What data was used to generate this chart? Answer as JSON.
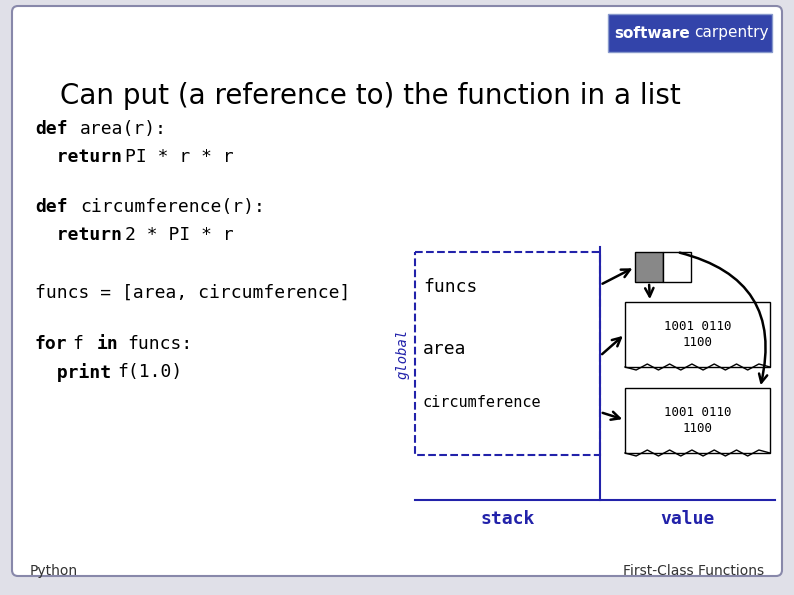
{
  "title": "Can put (a reference to) the function in a list",
  "bg_color": "#e0e0e8",
  "slide_bg": "#ffffff",
  "border_color": "#8888aa",
  "stack_color": "#2222aa",
  "footer_left": "Python",
  "footer_right": "First-Class Functions",
  "logo_software": "software",
  "logo_carpentry": "carpentry",
  "logo_bg": "#3344aa",
  "logo_border": "#8899cc",
  "stack_label": "stack",
  "value_label": "value",
  "global_label": "global",
  "mem_text_1": "1001 0110\n1100",
  "mem_text_2": "1001 0110\n1100"
}
